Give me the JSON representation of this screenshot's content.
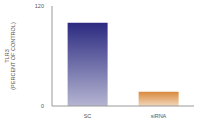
{
  "chart_data": {
    "type": "bar",
    "y_label": "TLR3 (PERCENT OF CONTROL)",
    "categories": [
      "SC",
      "siRNA"
    ],
    "values": [
      100,
      17
    ],
    "colors": [
      "#2b2a80",
      "#d98a3c"
    ],
    "ylim": [
      0,
      120
    ],
    "yticks": [
      0,
      120
    ],
    "grid": false
  }
}
